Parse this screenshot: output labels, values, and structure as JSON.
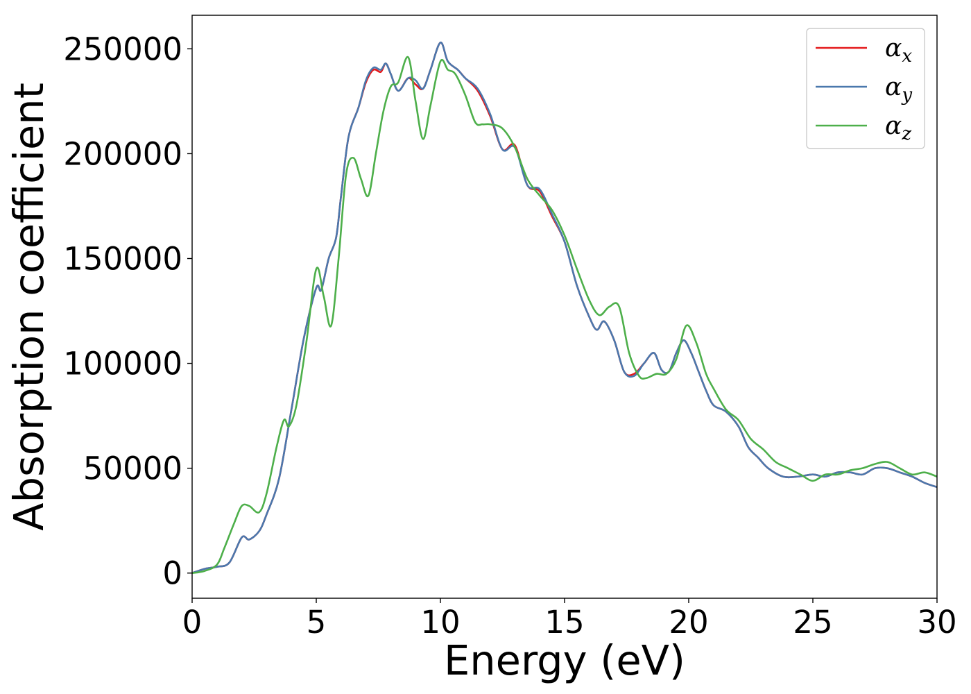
{
  "chart_data": {
    "type": "line",
    "xlabel": "Energy (eV)",
    "ylabel": "Absorption coefficient",
    "xlim": [
      0,
      30
    ],
    "ylim": [
      -12000,
      266000
    ],
    "xticks": [
      0,
      5,
      10,
      15,
      20,
      25,
      30
    ],
    "xtick_labels": [
      "0",
      "5",
      "10",
      "15",
      "20",
      "25",
      "30"
    ],
    "yticks": [
      0,
      50000,
      100000,
      150000,
      200000,
      250000
    ],
    "ytick_labels": [
      "0",
      "50000",
      "100000",
      "150000",
      "200000",
      "250000"
    ],
    "grid": false,
    "legend_position": "top-right",
    "series": [
      {
        "name": "α",
        "subscript": "x",
        "color": "#e41a1c",
        "x": [
          0,
          0.5,
          1,
          1.5,
          2,
          2.3,
          2.7,
          3,
          3.5,
          4,
          4.5,
          5,
          5.2,
          5.5,
          5.8,
          6,
          6.3,
          6.7,
          7,
          7.3,
          7.6,
          7.8,
          8,
          8.3,
          8.7,
          9,
          9.3,
          9.6,
          10,
          10.3,
          10.7,
          11,
          11.5,
          12,
          12.5,
          13,
          13.5,
          14,
          14.5,
          15,
          15.5,
          16,
          16.3,
          16.6,
          17,
          17.4,
          17.8,
          18.2,
          18.6,
          18.9,
          19.2,
          19.5,
          19.8,
          20.1,
          20.4,
          20.7,
          21,
          21.5,
          22,
          22.4,
          22.8,
          23.2,
          23.8,
          24.4,
          25,
          25.5,
          26,
          26.5,
          27,
          27.5,
          28,
          28.5,
          29,
          29.5,
          30
        ],
        "values": [
          0,
          2000,
          3000,
          5000,
          17000,
          16000,
          20000,
          28000,
          45000,
          78000,
          112000,
          136000,
          135000,
          150000,
          160000,
          180000,
          208000,
          222000,
          234000,
          240000,
          239000,
          243000,
          238000,
          230000,
          236000,
          233000,
          231000,
          240000,
          253000,
          244000,
          240000,
          236000,
          230000,
          218000,
          202000,
          204000,
          185000,
          182000,
          170000,
          158000,
          137000,
          122000,
          116000,
          120000,
          111000,
          96000,
          95000,
          100000,
          105000,
          97000,
          96000,
          105000,
          111000,
          105000,
          96000,
          87000,
          80000,
          77000,
          70000,
          60000,
          55000,
          50000,
          46000,
          46000,
          47000,
          46000,
          48000,
          48000,
          47000,
          50000,
          50000,
          48000,
          46000,
          43000,
          41000
        ]
      },
      {
        "name": "α",
        "subscript": "y",
        "color": "#4a78ad",
        "x": [
          0,
          0.5,
          1,
          1.5,
          2,
          2.3,
          2.7,
          3,
          3.5,
          4,
          4.5,
          5,
          5.2,
          5.5,
          5.8,
          6,
          6.3,
          6.7,
          7,
          7.3,
          7.6,
          7.8,
          8,
          8.3,
          8.7,
          9,
          9.3,
          9.6,
          10,
          10.3,
          10.7,
          11,
          11.5,
          12,
          12.5,
          13,
          13.5,
          14,
          14.5,
          15,
          15.5,
          16,
          16.3,
          16.6,
          17,
          17.4,
          17.8,
          18.2,
          18.6,
          18.9,
          19.2,
          19.5,
          19.8,
          20.1,
          20.4,
          20.7,
          21,
          21.5,
          22,
          22.4,
          22.8,
          23.2,
          23.8,
          24.4,
          25,
          25.5,
          26,
          26.5,
          27,
          27.5,
          28,
          28.5,
          29,
          29.5,
          30
        ],
        "values": [
          0,
          2000,
          3000,
          5000,
          17000,
          16000,
          20000,
          28000,
          45000,
          78000,
          112000,
          136000,
          135000,
          150000,
          160000,
          180000,
          208000,
          222000,
          235000,
          241000,
          240000,
          243000,
          238000,
          230000,
          236000,
          235000,
          231000,
          240000,
          253000,
          244000,
          240000,
          236000,
          231000,
          219000,
          202000,
          203000,
          185000,
          183000,
          171000,
          158000,
          137000,
          122000,
          116000,
          120000,
          111000,
          96000,
          94000,
          100000,
          105000,
          97000,
          96000,
          105000,
          111000,
          105000,
          96000,
          87000,
          80000,
          77000,
          70000,
          60000,
          55000,
          50000,
          46000,
          46000,
          47000,
          46000,
          48000,
          48000,
          47000,
          50000,
          50000,
          48000,
          46000,
          43000,
          41000
        ]
      },
      {
        "name": "α",
        "subscript": "z",
        "color": "#4daf4a",
        "x": [
          0,
          0.5,
          1,
          1.3,
          1.7,
          2,
          2.3,
          2.7,
          3,
          3.4,
          3.7,
          3.9,
          4.2,
          4.6,
          5,
          5.3,
          5.6,
          5.9,
          6.2,
          6.5,
          6.8,
          7.1,
          7.4,
          7.7,
          8,
          8.3,
          8.7,
          9,
          9.3,
          9.6,
          10,
          10.3,
          10.6,
          11,
          11.4,
          11.7,
          12,
          12.5,
          13,
          13.5,
          14,
          14.5,
          15,
          15.5,
          16,
          16.4,
          16.8,
          17.2,
          17.6,
          18,
          18.3,
          18.7,
          19.1,
          19.5,
          19.9,
          20.3,
          20.7,
          21,
          21.5,
          22,
          22.5,
          23,
          23.5,
          24,
          24.5,
          25,
          25.5,
          26,
          26.5,
          27,
          27.5,
          28,
          28.5,
          29,
          29.5,
          30
        ],
        "values": [
          0,
          1000,
          4000,
          12000,
          24000,
          32000,
          32000,
          29000,
          38000,
          60000,
          73000,
          70000,
          80000,
          110000,
          145000,
          132000,
          118000,
          150000,
          190000,
          198000,
          188000,
          180000,
          200000,
          220000,
          232000,
          234000,
          246000,
          225000,
          207000,
          223000,
          244000,
          240000,
          238000,
          228000,
          215000,
          214000,
          214000,
          212000,
          203000,
          188000,
          180000,
          173000,
          161000,
          145000,
          130000,
          123000,
          127000,
          127000,
          105000,
          94000,
          93000,
          95000,
          95000,
          102000,
          118000,
          110000,
          95000,
          88000,
          78000,
          73000,
          64000,
          59000,
          53000,
          50000,
          47000,
          44000,
          47000,
          47000,
          49000,
          50000,
          52000,
          53000,
          50000,
          47000,
          48000,
          46000
        ]
      }
    ]
  }
}
